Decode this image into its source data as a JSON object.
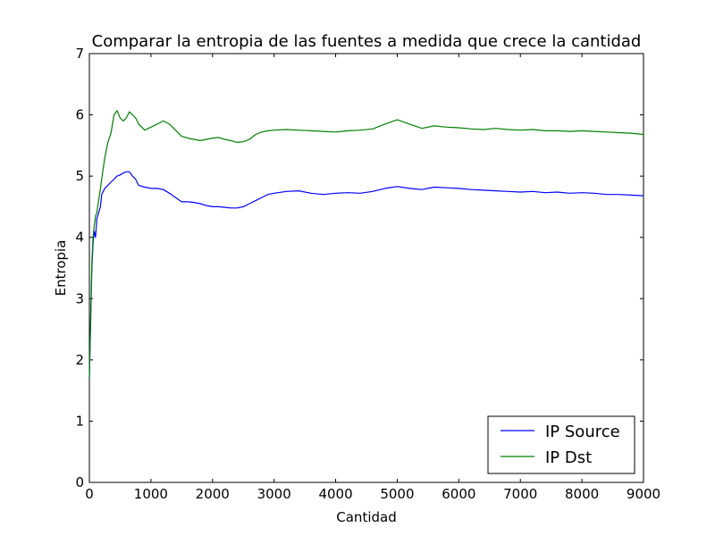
{
  "chart_data": {
    "type": "line",
    "title": "Comparar la entropia de las fuentes a medida que crece la cantidad",
    "xlabel": "Cantidad",
    "ylabel": "Entropia",
    "xlim": [
      0,
      9000
    ],
    "ylim": [
      0,
      7
    ],
    "xticks": [
      0,
      1000,
      2000,
      3000,
      4000,
      5000,
      6000,
      7000,
      8000,
      9000
    ],
    "yticks": [
      0,
      1,
      2,
      3,
      4,
      5,
      6,
      7
    ],
    "grid": false,
    "legend": "bottom-right",
    "series": [
      {
        "name": "IP Source",
        "color": "#0000ff",
        "x": [
          0,
          20,
          40,
          60,
          80,
          100,
          120,
          150,
          180,
          200,
          250,
          300,
          350,
          400,
          450,
          500,
          550,
          600,
          650,
          700,
          750,
          800,
          900,
          1000,
          1100,
          1200,
          1300,
          1400,
          1500,
          1600,
          1700,
          1800,
          1900,
          2000,
          2100,
          2200,
          2300,
          2400,
          2500,
          2600,
          2700,
          2800,
          2900,
          3000,
          3200,
          3400,
          3600,
          3800,
          4000,
          4200,
          4400,
          4600,
          4800,
          5000,
          5200,
          5400,
          5600,
          5800,
          6000,
          6200,
          6400,
          6600,
          6800,
          7000,
          7200,
          7400,
          7600,
          7800,
          8000,
          8200,
          8400,
          8600,
          8800,
          9000
        ],
        "y": [
          1.7,
          2.6,
          3.5,
          3.9,
          4.1,
          4.0,
          4.3,
          4.4,
          4.5,
          4.7,
          4.8,
          4.85,
          4.9,
          4.95,
          5.0,
          5.02,
          5.05,
          5.07,
          5.07,
          5.0,
          4.95,
          4.85,
          4.82,
          4.8,
          4.8,
          4.78,
          4.72,
          4.65,
          4.58,
          4.58,
          4.57,
          4.55,
          4.52,
          4.5,
          4.5,
          4.49,
          4.48,
          4.48,
          4.5,
          4.55,
          4.6,
          4.65,
          4.7,
          4.72,
          4.75,
          4.76,
          4.72,
          4.7,
          4.72,
          4.73,
          4.72,
          4.75,
          4.8,
          4.83,
          4.8,
          4.78,
          4.82,
          4.81,
          4.8,
          4.78,
          4.77,
          4.76,
          4.75,
          4.74,
          4.75,
          4.73,
          4.74,
          4.72,
          4.73,
          4.72,
          4.7,
          4.7,
          4.69,
          4.68
        ]
      },
      {
        "name": "IP Dst",
        "color": "#008000",
        "x": [
          0,
          20,
          40,
          60,
          80,
          100,
          120,
          150,
          180,
          200,
          250,
          300,
          350,
          400,
          450,
          500,
          550,
          600,
          650,
          700,
          750,
          800,
          900,
          1000,
          1100,
          1200,
          1300,
          1400,
          1500,
          1600,
          1700,
          1800,
          1900,
          2000,
          2100,
          2200,
          2300,
          2400,
          2500,
          2600,
          2700,
          2800,
          2900,
          3000,
          3200,
          3400,
          3600,
          3800,
          4000,
          4200,
          4400,
          4600,
          4800,
          5000,
          5200,
          5400,
          5600,
          5800,
          6000,
          6200,
          6400,
          6600,
          6800,
          7000,
          7200,
          7400,
          7600,
          7800,
          8000,
          8200,
          8400,
          8600,
          8800,
          9000
        ],
        "y": [
          1.7,
          2.7,
          3.6,
          4.0,
          4.2,
          4.35,
          4.4,
          4.6,
          4.8,
          4.95,
          5.3,
          5.55,
          5.7,
          6.0,
          6.07,
          5.95,
          5.9,
          5.95,
          6.05,
          6.0,
          5.95,
          5.85,
          5.75,
          5.8,
          5.85,
          5.9,
          5.85,
          5.75,
          5.65,
          5.62,
          5.6,
          5.58,
          5.6,
          5.62,
          5.63,
          5.6,
          5.58,
          5.55,
          5.56,
          5.6,
          5.68,
          5.72,
          5.74,
          5.75,
          5.76,
          5.75,
          5.74,
          5.73,
          5.72,
          5.74,
          5.75,
          5.77,
          5.85,
          5.92,
          5.85,
          5.78,
          5.82,
          5.8,
          5.79,
          5.77,
          5.76,
          5.78,
          5.76,
          5.75,
          5.76,
          5.74,
          5.74,
          5.73,
          5.74,
          5.73,
          5.72,
          5.71,
          5.7,
          5.68
        ]
      }
    ]
  }
}
